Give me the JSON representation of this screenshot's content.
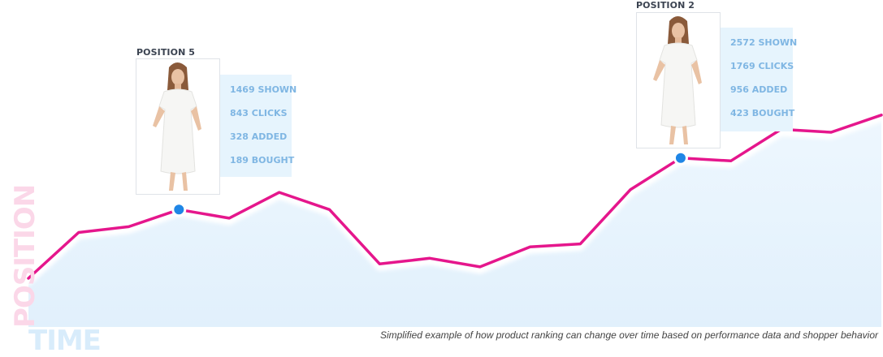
{
  "chart_data": {
    "type": "area",
    "title": "",
    "xlabel": "TIME",
    "ylabel": "POSITION",
    "caption": "Simplified example of how product ranking can change over time based on performance data and shopper behavior",
    "x": [
      1,
      2,
      3,
      4,
      5,
      6,
      7,
      8,
      9,
      10,
      11,
      12,
      13,
      14,
      15,
      16,
      17,
      18
    ],
    "values": [
      0.17,
      0.33,
      0.35,
      0.41,
      0.38,
      0.47,
      0.41,
      0.22,
      0.24,
      0.21,
      0.28,
      0.29,
      0.48,
      0.59,
      0.58,
      0.69,
      0.68,
      0.74
    ],
    "highlights": [
      {
        "index": 3,
        "title": "POSITION 5",
        "stats": [
          "1469 SHOWN",
          "843 CLICKS",
          "328 ADDED",
          "189 BOUGHT"
        ]
      },
      {
        "index": 13,
        "title": "POSITION 2",
        "stats": [
          "2572 SHOWN",
          "1769 CLICKS",
          "956 ADDED",
          "423 BOUGHT"
        ]
      }
    ],
    "colors": {
      "line": "#e5168c",
      "area": "#e6f3fd",
      "marker": "#1f86e6",
      "stats_bg": "#e6f4fd",
      "stats_text": "#7fb6e3"
    },
    "grid": false
  }
}
